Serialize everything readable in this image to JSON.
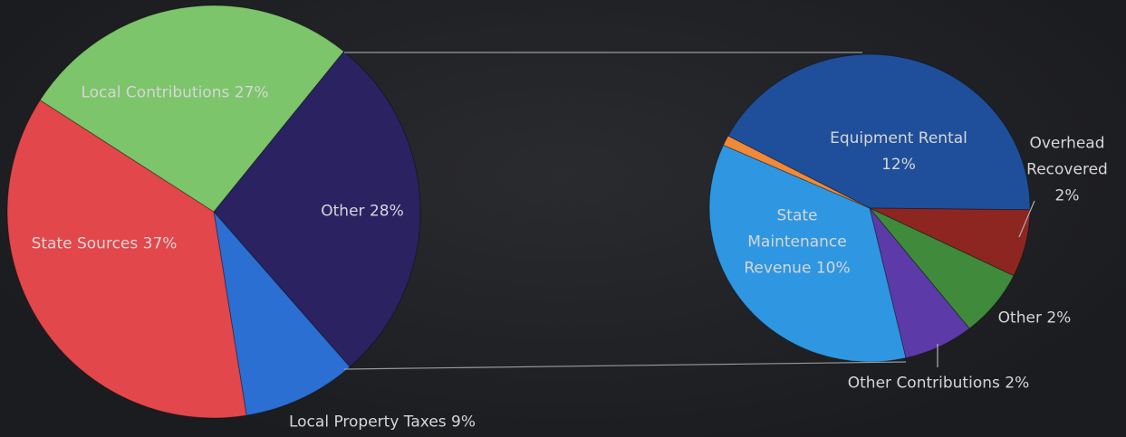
{
  "chart_data": [
    {
      "type": "pie",
      "categories": [
        "Other 28%",
        "Local Property Taxes 9%",
        "State Sources 37%",
        "Local Contributions 27%"
      ],
      "values": [
        28,
        9,
        37,
        27
      ],
      "colors": [
        "#2b2262",
        "#2b6fd3",
        "#e2474b",
        "#7cc56b"
      ]
    },
    {
      "type": "pie",
      "categories": [
        "Equipment Rental\n12%",
        "Overhead\nRecovered\n2%",
        "Other 2%",
        "Other Contributions 2%",
        "State\nMaintenance\nRevenue 10%",
        null
      ],
      "values": [
        12,
        2,
        2,
        2,
        10,
        0.3
      ],
      "colors": [
        "#1f4f9b",
        "#8d2621",
        "#3f8b3b",
        "#5c3ba8",
        "#2f97e1",
        "#f08a3a"
      ]
    }
  ]
}
